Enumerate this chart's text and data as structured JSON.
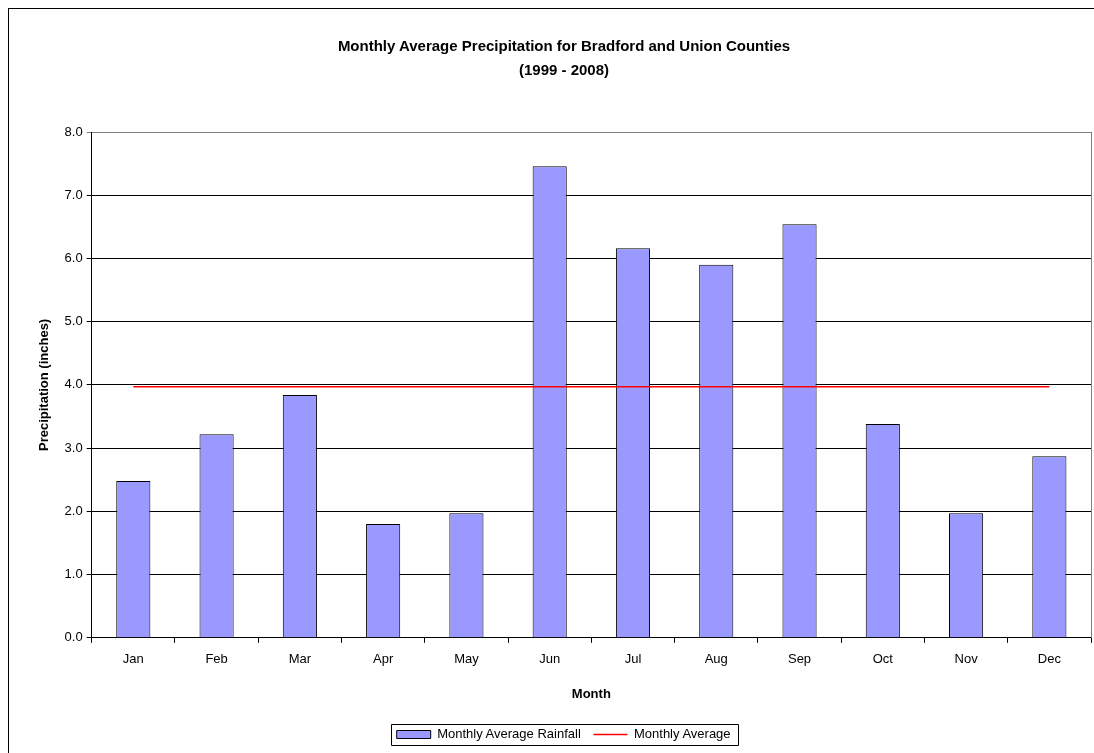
{
  "chart_data": {
    "type": "bar",
    "title": "Monthly Average Precipitation for Bradford and Union Counties",
    "subtitle": "(1999 - 2008)",
    "xlabel": "Month",
    "ylabel": "Precipitation (inches)",
    "categories": [
      "Jan",
      "Feb",
      "Mar",
      "Apr",
      "May",
      "Jun",
      "Jul",
      "Aug",
      "Sep",
      "Oct",
      "Nov",
      "Dec"
    ],
    "series": [
      {
        "name": "Monthly Average Rainfall",
        "color": "#9999ff",
        "values": [
          2.48,
          3.22,
          3.84,
          1.8,
          1.97,
          7.46,
          6.16,
          5.9,
          6.54,
          3.38,
          1.97,
          2.87
        ]
      },
      {
        "name": "Monthly Average",
        "type": "line",
        "color": "#ff0000",
        "values": [
          3.97,
          3.97,
          3.97,
          3.97,
          3.97,
          3.97,
          3.97,
          3.97,
          3.97,
          3.97,
          3.97,
          3.97
        ]
      }
    ],
    "ylim": [
      0,
      8
    ],
    "yticks": [
      {
        "value": 0,
        "label": "0.0"
      },
      {
        "value": 1,
        "label": "1.0"
      },
      {
        "value": 2,
        "label": "2.0"
      },
      {
        "value": 3,
        "label": "3.0"
      },
      {
        "value": 4,
        "label": "4.0"
      },
      {
        "value": 5,
        "label": "5.0"
      },
      {
        "value": 6,
        "label": "6.0"
      },
      {
        "value": 7,
        "label": "7.0"
      },
      {
        "value": 8,
        "label": "8.0"
      }
    ],
    "grid": "y",
    "legend": "bottom"
  }
}
